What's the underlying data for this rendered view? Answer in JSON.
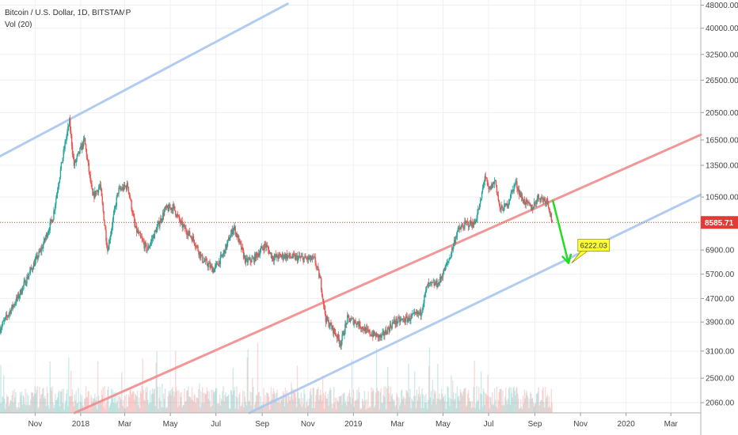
{
  "header": {
    "symbol_title": "Bitcoin / U.S. Dollar, 1D, BITSTAMP",
    "volume_label": "Vol (20)"
  },
  "colors": {
    "up_candle": "#26a69a",
    "down_candle": "#ef5350",
    "channel_line": "#a9c6ee",
    "mid_channel_line": "#f08c8c",
    "current_price_line": "#e53935",
    "projection_arrow": "#22dd22",
    "target_label_fill": "#ffff33",
    "grid": "#eef0f3",
    "axis_text": "#444444"
  },
  "chart_data": {
    "type": "candlestick",
    "symbol": "Bitcoin / U.S. Dollar",
    "interval": "1D",
    "exchange": "BITSTAMP",
    "y_scale": "log",
    "ylim": [
      1900,
      50000
    ],
    "y_ticks": [
      "48000.00",
      "40000.00",
      "32500.00",
      "26500.00",
      "20500.00",
      "16500.00",
      "13500.00",
      "10500.00",
      "6900.00",
      "5700.00",
      "4700.00",
      "3900.00",
      "3100.00",
      "2500.00",
      "2060.00"
    ],
    "x_ticks": [
      "Nov",
      "2018",
      "Mar",
      "May",
      "Jul",
      "Sep",
      "Nov",
      "2019",
      "Mar",
      "May",
      "Jul",
      "Sep",
      "Nov",
      "2020",
      "Mar"
    ],
    "x_range": [
      "2017-09-15",
      "2020-04-10"
    ],
    "current_price": "8585.71",
    "target_label": "6222.03",
    "target_date": "2019-10-20",
    "price_path": [
      [
        "2017-09-15",
        3700
      ],
      [
        "2017-10-10",
        4800
      ],
      [
        "2017-10-25",
        5800
      ],
      [
        "2017-11-10",
        7000
      ],
      [
        "2017-11-25",
        9000
      ],
      [
        "2017-12-05",
        13000
      ],
      [
        "2017-12-12",
        16500
      ],
      [
        "2017-12-17",
        19000
      ],
      [
        "2017-12-23",
        13500
      ],
      [
        "2017-12-28",
        14500
      ],
      [
        "2018-01-06",
        16500
      ],
      [
        "2018-01-17",
        10500
      ],
      [
        "2018-01-27",
        11500
      ],
      [
        "2018-02-06",
        6900
      ],
      [
        "2018-02-20",
        11000
      ],
      [
        "2018-03-05",
        11500
      ],
      [
        "2018-03-15",
        8200
      ],
      [
        "2018-03-31",
        6900
      ],
      [
        "2018-04-24",
        9500
      ],
      [
        "2018-05-05",
        9700
      ],
      [
        "2018-05-15",
        8500
      ],
      [
        "2018-06-01",
        7500
      ],
      [
        "2018-06-13",
        6400
      ],
      [
        "2018-06-28",
        5900
      ],
      [
        "2018-07-10",
        6600
      ],
      [
        "2018-07-25",
        8300
      ],
      [
        "2018-08-10",
        6300
      ],
      [
        "2018-08-20",
        6400
      ],
      [
        "2018-09-05",
        7200
      ],
      [
        "2018-09-15",
        6500
      ],
      [
        "2018-10-01",
        6600
      ],
      [
        "2018-10-15",
        6500
      ],
      [
        "2018-11-10",
        6400
      ],
      [
        "2018-11-18",
        5400
      ],
      [
        "2018-11-25",
        4000
      ],
      [
        "2018-12-07",
        3600
      ],
      [
        "2018-12-15",
        3300
      ],
      [
        "2018-12-24",
        4000
      ],
      [
        "2019-01-05",
        3900
      ],
      [
        "2019-01-20",
        3600
      ],
      [
        "2019-02-07",
        3450
      ],
      [
        "2019-02-24",
        3900
      ],
      [
        "2019-03-15",
        4000
      ],
      [
        "2019-04-01",
        4200
      ],
      [
        "2019-04-10",
        5200
      ],
      [
        "2019-04-25",
        5300
      ],
      [
        "2019-05-10",
        6500
      ],
      [
        "2019-05-20",
        8000
      ],
      [
        "2019-06-01",
        8500
      ],
      [
        "2019-06-12",
        8500
      ],
      [
        "2019-06-20",
        10000
      ],
      [
        "2019-06-26",
        12500
      ],
      [
        "2019-07-01",
        11000
      ],
      [
        "2019-07-10",
        12000
      ],
      [
        "2019-07-16",
        9500
      ],
      [
        "2019-07-25",
        9800
      ],
      [
        "2019-08-06",
        11800
      ],
      [
        "2019-08-15",
        10300
      ],
      [
        "2019-08-28",
        9600
      ],
      [
        "2019-09-05",
        10500
      ],
      [
        "2019-09-18",
        10200
      ],
      [
        "2019-09-24",
        8585.71
      ]
    ],
    "trend_lines": [
      {
        "style": "channel",
        "points": [
          [
            "2017-09-15",
            14500
          ],
          [
            "2018-10-05",
            48500
          ]
        ]
      },
      {
        "style": "mid",
        "points": [
          [
            "2017-12-24",
            1900
          ],
          [
            "2020-04-10",
            17200
          ]
        ]
      },
      {
        "style": "channel",
        "points": [
          [
            "2018-08-15",
            1900
          ],
          [
            "2020-04-10",
            10700
          ]
        ]
      }
    ],
    "projection": {
      "from": [
        "2019-09-25",
        10200
      ],
      "to": [
        "2019-10-16",
        6222.03
      ]
    }
  }
}
